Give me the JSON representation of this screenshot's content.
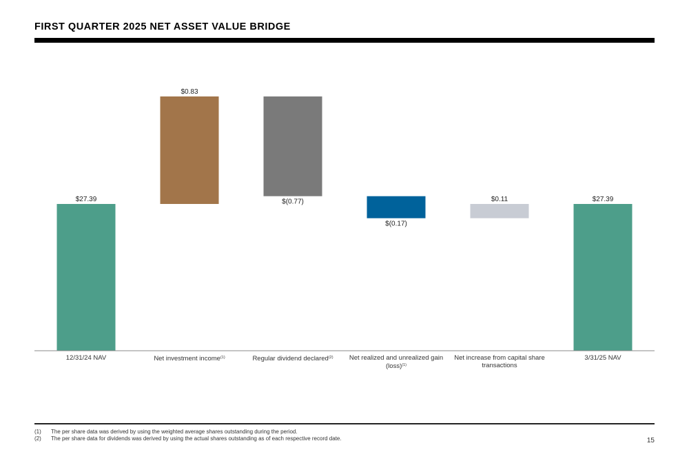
{
  "page": {
    "title": "FIRST QUARTER 2025 NET ASSET VALUE BRIDGE",
    "page_number": "15"
  },
  "chart_data": {
    "type": "waterfall",
    "categories": [
      {
        "label": "12/31/24 NAV",
        "sup": ""
      },
      {
        "label": "Net investment income",
        "sup": "(1)"
      },
      {
        "label": "Regular dividend declared",
        "sup": "(2)"
      },
      {
        "label": "Net realized and unrealized gain (loss)",
        "sup": "(1)"
      },
      {
        "label": "Net increase from capital share transactions",
        "sup": ""
      },
      {
        "label": "3/31/25 NAV",
        "sup": ""
      }
    ],
    "values": [
      27.39,
      0.83,
      -0.77,
      -0.17,
      0.11,
      27.39
    ],
    "kinds": [
      "total",
      "delta",
      "delta",
      "delta",
      "delta",
      "total"
    ],
    "data_labels": [
      "$27.39",
      "$0.83",
      "$(0.77)",
      "$(0.17)",
      "$0.11",
      "$27.39"
    ],
    "colors": [
      "#4d9e8a",
      "#a2754a",
      "#7a7a7a",
      "#00629b",
      "#c8ccd4",
      "#4d9e8a"
    ],
    "axis_color": "#888888"
  },
  "footnotes": [
    {
      "num": "(1)",
      "text": "The per share data was derived by using the weighted average shares outstanding during the period."
    },
    {
      "num": "(2)",
      "text": "The per share data for dividends was derived by using the actual shares outstanding as of each respective record date."
    }
  ]
}
